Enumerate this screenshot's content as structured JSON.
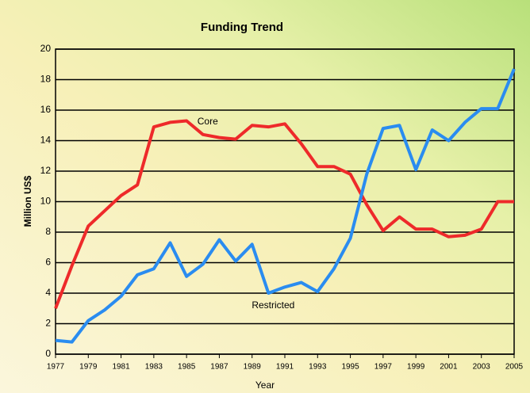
{
  "chart_data": {
    "type": "line",
    "title": "Funding Trend",
    "x_label": "Year",
    "y_label": "Million US$",
    "x": [
      1977,
      1978,
      1979,
      1980,
      1981,
      1982,
      1983,
      1984,
      1985,
      1986,
      1987,
      1988,
      1989,
      1990,
      1991,
      1992,
      1993,
      1994,
      1995,
      1996,
      1997,
      1998,
      1999,
      2000,
      2001,
      2002,
      2003,
      2004,
      2005
    ],
    "series": [
      {
        "name": "Core",
        "color": "#ee2a2a",
        "values": [
          3.0,
          5.8,
          8.4,
          9.4,
          10.4,
          11.1,
          14.9,
          15.2,
          15.3,
          14.4,
          14.2,
          14.1,
          15.0,
          14.9,
          15.1,
          13.8,
          12.3,
          12.3,
          11.8,
          9.8,
          8.1,
          9.0,
          8.2,
          8.2,
          7.7,
          7.8,
          8.2,
          10.0,
          10.0
        ]
      },
      {
        "name": "Restricted",
        "color": "#2a8cf0",
        "values": [
          0.9,
          0.8,
          2.2,
          2.9,
          3.8,
          5.2,
          5.6,
          7.3,
          5.1,
          5.9,
          7.5,
          6.1,
          7.2,
          4.0,
          4.4,
          4.7,
          4.1,
          5.6,
          7.6,
          11.8,
          14.8,
          15.0,
          12.1,
          14.7,
          14.0,
          15.2,
          16.1,
          16.1,
          18.7
        ]
      }
    ],
    "xlim": [
      1977,
      2005
    ],
    "xticks": [
      1977,
      1979,
      1981,
      1983,
      1985,
      1987,
      1989,
      1991,
      1993,
      1995,
      1997,
      1999,
      2001,
      2003,
      2005
    ],
    "ylim": [
      0,
      20
    ],
    "yticks": [
      0,
      2,
      4,
      6,
      8,
      10,
      12,
      14,
      16,
      18,
      20
    ],
    "grid": true
  }
}
